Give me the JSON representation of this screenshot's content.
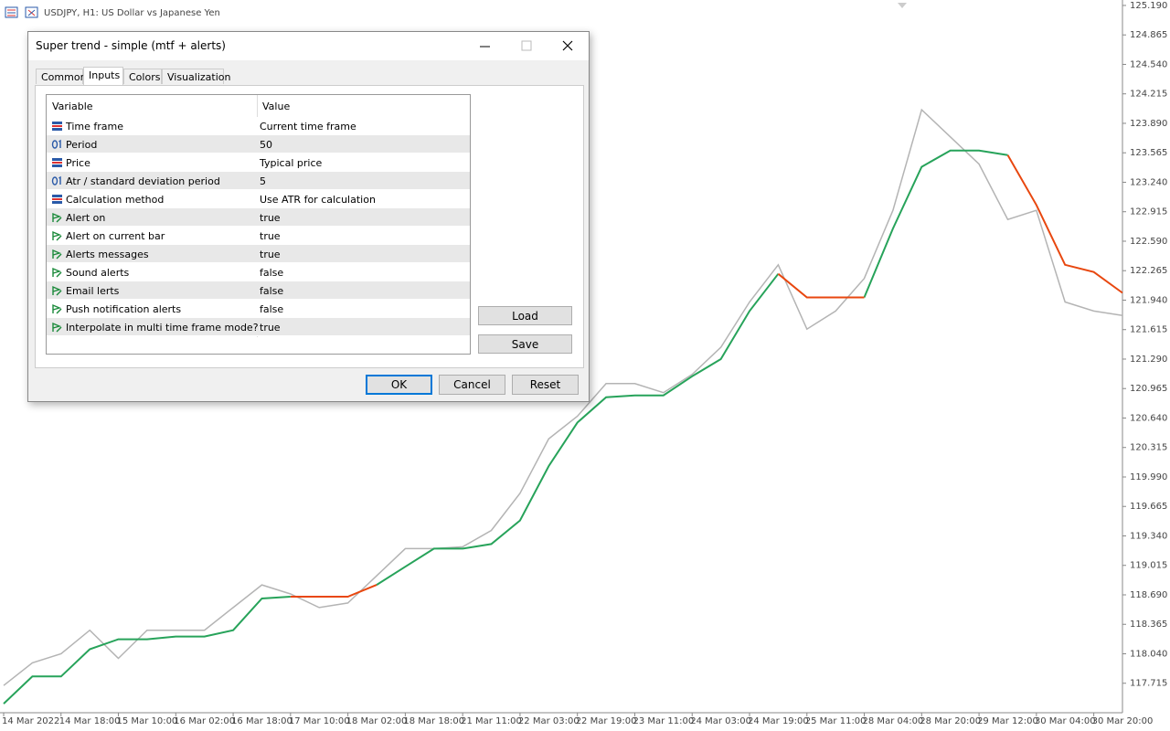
{
  "chart_header": "USDJPY, H1:  US Dollar vs Japanese Yen",
  "chart_data": {
    "type": "line",
    "categories": [
      "14 Mar 2022",
      null,
      "14 Mar 18:00",
      null,
      "15 Mar 10:00",
      null,
      "16 Mar 02:00",
      null,
      "16 Mar 18:00",
      null,
      "17 Mar 10:00",
      null,
      "18 Mar 02:00",
      null,
      "18 Mar 18:00",
      null,
      "21 Mar 11:00",
      null,
      "22 Mar 03:00",
      null,
      "22 Mar 19:00",
      null,
      "23 Mar 11:00",
      null,
      "24 Mar 03:00",
      null,
      "24 Mar 19:00",
      null,
      "25 Mar 11:00",
      null,
      "28 Mar 04:00",
      null,
      "28 Mar 20:00",
      null,
      "29 Mar 12:00",
      null,
      "30 Mar 04:00",
      null,
      "30 Mar 20:00",
      null
    ],
    "series": [
      {
        "color": "#b4b4b4",
        "values": [
          117.69,
          117.94,
          118.04,
          118.3,
          117.99,
          118.3,
          118.3,
          118.3,
          118.55,
          118.8,
          118.7,
          118.55,
          118.6,
          118.9,
          119.2,
          119.2,
          119.22,
          119.4,
          119.81,
          120.41,
          120.66,
          121.02,
          121.02,
          120.92,
          121.12,
          121.42,
          121.92,
          122.33,
          121.62,
          121.82,
          122.18,
          122.93,
          124.04,
          123.74,
          123.44,
          122.83,
          122.93,
          121.92,
          121.82,
          121.77
        ]
      },
      {
        "color": "#27a35a",
        "values": [
          117.49,
          117.79,
          117.79,
          118.09,
          118.2,
          118.2,
          118.23,
          118.23,
          118.3,
          118.65,
          118.67,
          null,
          null,
          118.8,
          119.0,
          119.2,
          119.2,
          119.25,
          119.51,
          120.11,
          120.59,
          120.87,
          120.89,
          120.89,
          121.1,
          121.29,
          121.82,
          122.23,
          null,
          null,
          121.97,
          122.73,
          123.41,
          123.59,
          123.59,
          123.54,
          null,
          null,
          null,
          null
        ]
      },
      {
        "color": "#e8470f",
        "values": [
          null,
          null,
          null,
          null,
          null,
          null,
          null,
          null,
          null,
          null,
          118.67,
          118.67,
          118.67,
          118.8,
          null,
          null,
          null,
          null,
          null,
          null,
          null,
          null,
          null,
          null,
          null,
          null,
          null,
          122.23,
          121.97,
          121.97,
          121.97,
          null,
          null,
          null,
          null,
          123.54,
          122.99,
          122.33,
          122.25,
          122.02
        ]
      }
    ],
    "ylim": [
      117.39,
      125.25
    ],
    "yticks": [
      {
        "value": 125.19,
        "label": "125.190"
      },
      124.865,
      {
        "value": 124.54,
        "label": "124.540"
      },
      124.215,
      {
        "value": 123.89,
        "label": "123.890"
      },
      123.565,
      {
        "value": 123.24,
        "label": "123.240"
      },
      122.915,
      {
        "value": 122.59,
        "label": "122.590"
      },
      122.265,
      {
        "value": 121.94,
        "label": "121.940"
      },
      121.615,
      {
        "value": 121.29,
        "label": "121.290"
      },
      120.965,
      {
        "value": 120.64,
        "label": "120.640"
      },
      120.315,
      {
        "value": 119.99,
        "label": "119.990"
      },
      119.665,
      {
        "value": 119.34,
        "label": "119.340"
      },
      119.015,
      {
        "value": 118.69,
        "label": "118.690"
      },
      118.365,
      {
        "value": 118.04,
        "label": "118.040"
      },
      117.715
    ]
  },
  "dialog": {
    "title": "Super trend - simple (mtf + alerts)",
    "tabs": [
      "Common",
      "Inputs",
      "Colors",
      "Visualization"
    ],
    "active_tab": 1,
    "table": {
      "headers": [
        "Variable",
        "Value"
      ],
      "rows": [
        {
          "kind": "enum",
          "variable": "Time frame",
          "value": "Current time frame"
        },
        {
          "kind": "int",
          "variable": "Period",
          "value": "50"
        },
        {
          "kind": "enum",
          "variable": "Price",
          "value": "Typical price"
        },
        {
          "kind": "int",
          "variable": "Atr / standard deviation period",
          "value": "5"
        },
        {
          "kind": "enum",
          "variable": "Calculation method",
          "value": "Use ATR for calculation"
        },
        {
          "kind": "bool",
          "variable": "Alert on",
          "value": "true"
        },
        {
          "kind": "bool",
          "variable": "Alert on current bar",
          "value": "true"
        },
        {
          "kind": "bool",
          "variable": "Alerts messages",
          "value": "true"
        },
        {
          "kind": "bool",
          "variable": "Sound alerts",
          "value": "false"
        },
        {
          "kind": "bool",
          "variable": "Email lerts",
          "value": "false"
        },
        {
          "kind": "bool",
          "variable": "Push notification alerts",
          "value": "false"
        },
        {
          "kind": "bool",
          "variable": "Interpolate in multi time frame mode?",
          "value": "true"
        }
      ]
    },
    "side_buttons": [
      "Load",
      "Save"
    ],
    "buttons": [
      "OK",
      "Cancel",
      "Reset"
    ]
  }
}
